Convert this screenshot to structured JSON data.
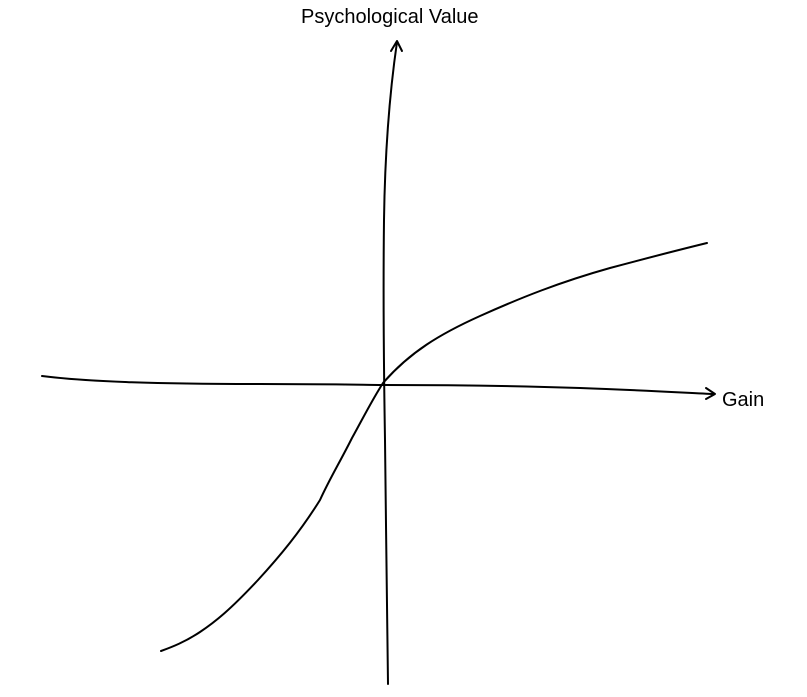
{
  "axes": {
    "y_label": "Psychological Value",
    "x_label": "Gain"
  },
  "colors": {
    "ink": "#000000",
    "background": "#ffffff"
  }
}
